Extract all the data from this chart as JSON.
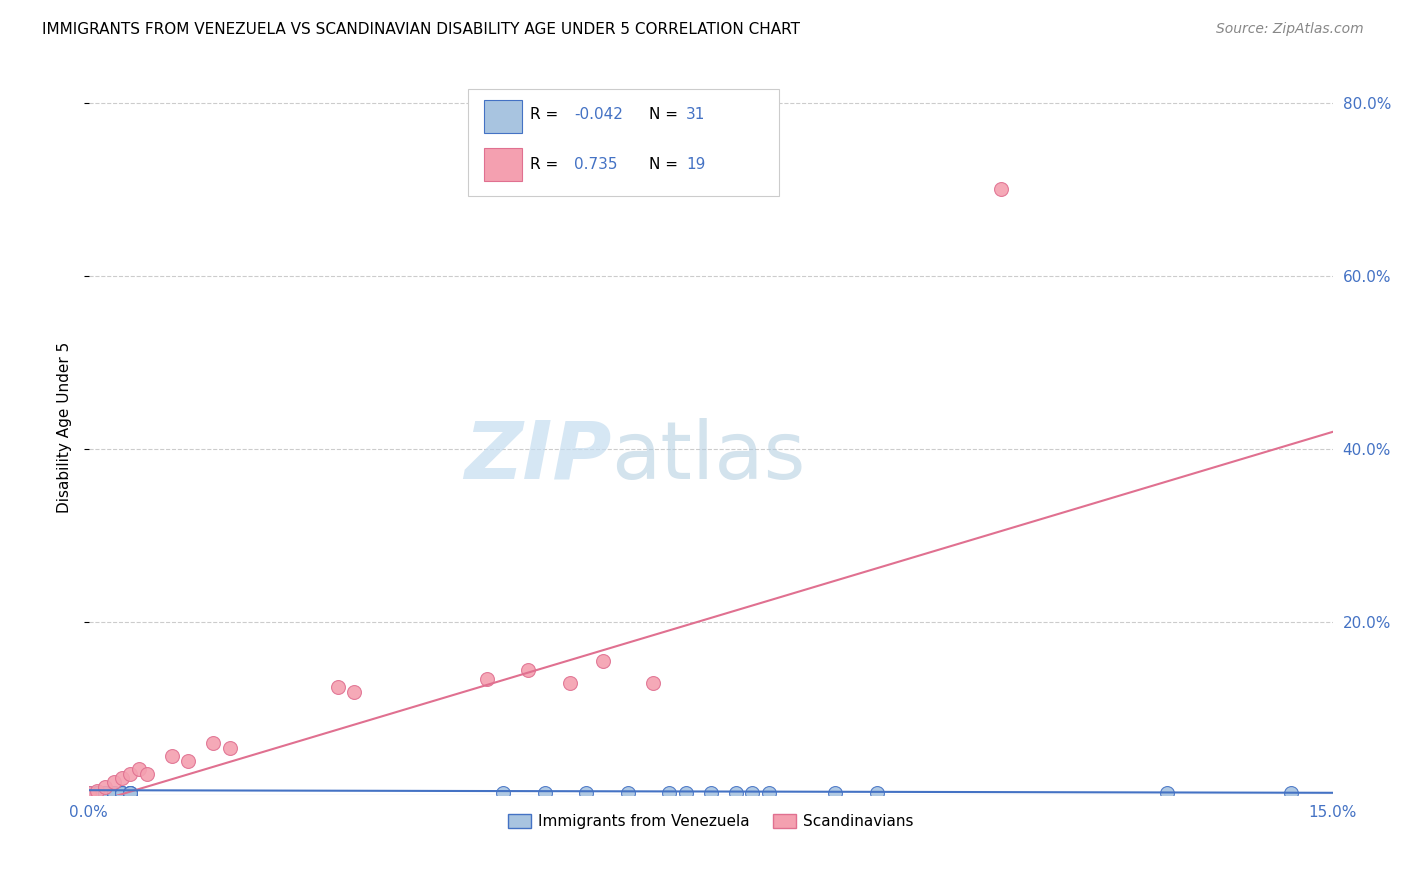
{
  "title": "IMMIGRANTS FROM VENEZUELA VS SCANDINAVIAN DISABILITY AGE UNDER 5 CORRELATION CHART",
  "source": "Source: ZipAtlas.com",
  "ylabel": "Disability Age Under 5",
  "xlim": [
    0.0,
    0.15
  ],
  "ylim": [
    0.0,
    0.85
  ],
  "ytick_values": [
    0.2,
    0.4,
    0.6,
    0.8
  ],
  "xtick_values": [
    0.0,
    0.15
  ],
  "xtick_labels": [
    "0.0%",
    "15.0%"
  ],
  "color_venezuela": "#a8c4e0",
  "color_scandinavian": "#f4a0b0",
  "color_line_venezuela": "#4472c4",
  "color_line_scandinavian": "#e07090",
  "color_axis_labels": "#4472c4",
  "venezuela_x": [
    0.0,
    0.001,
    0.001,
    0.001,
    0.002,
    0.002,
    0.002,
    0.003,
    0.003,
    0.003,
    0.004,
    0.004,
    0.004,
    0.005,
    0.005,
    0.005,
    0.005,
    0.05,
    0.055,
    0.06,
    0.065,
    0.07,
    0.072,
    0.075,
    0.078,
    0.08,
    0.082,
    0.09,
    0.095,
    0.13,
    0.145
  ],
  "venezuela_y": [
    0.003,
    0.003,
    0.003,
    0.003,
    0.003,
    0.003,
    0.003,
    0.003,
    0.003,
    0.003,
    0.003,
    0.003,
    0.003,
    0.003,
    0.003,
    0.003,
    0.003,
    0.003,
    0.003,
    0.003,
    0.003,
    0.003,
    0.003,
    0.003,
    0.003,
    0.003,
    0.003,
    0.003,
    0.003,
    0.003,
    0.003
  ],
  "scandinavian_x": [
    0.0,
    0.001,
    0.002,
    0.003,
    0.004,
    0.005,
    0.006,
    0.007,
    0.01,
    0.012,
    0.015,
    0.017,
    0.03,
    0.032,
    0.048,
    0.053,
    0.058,
    0.062,
    0.068,
    0.11
  ],
  "scandinavian_y": [
    0.003,
    0.005,
    0.01,
    0.015,
    0.02,
    0.025,
    0.03,
    0.025,
    0.045,
    0.04,
    0.06,
    0.055,
    0.125,
    0.12,
    0.135,
    0.145,
    0.13,
    0.155,
    0.13,
    0.7
  ],
  "scan_line_x0": 0.0,
  "scan_line_y0": -0.01,
  "scan_line_x1": 0.15,
  "scan_line_y1": 0.42,
  "ven_line_x0": 0.0,
  "ven_line_y0": 0.006,
  "ven_line_x1": 0.15,
  "ven_line_y1": 0.003
}
